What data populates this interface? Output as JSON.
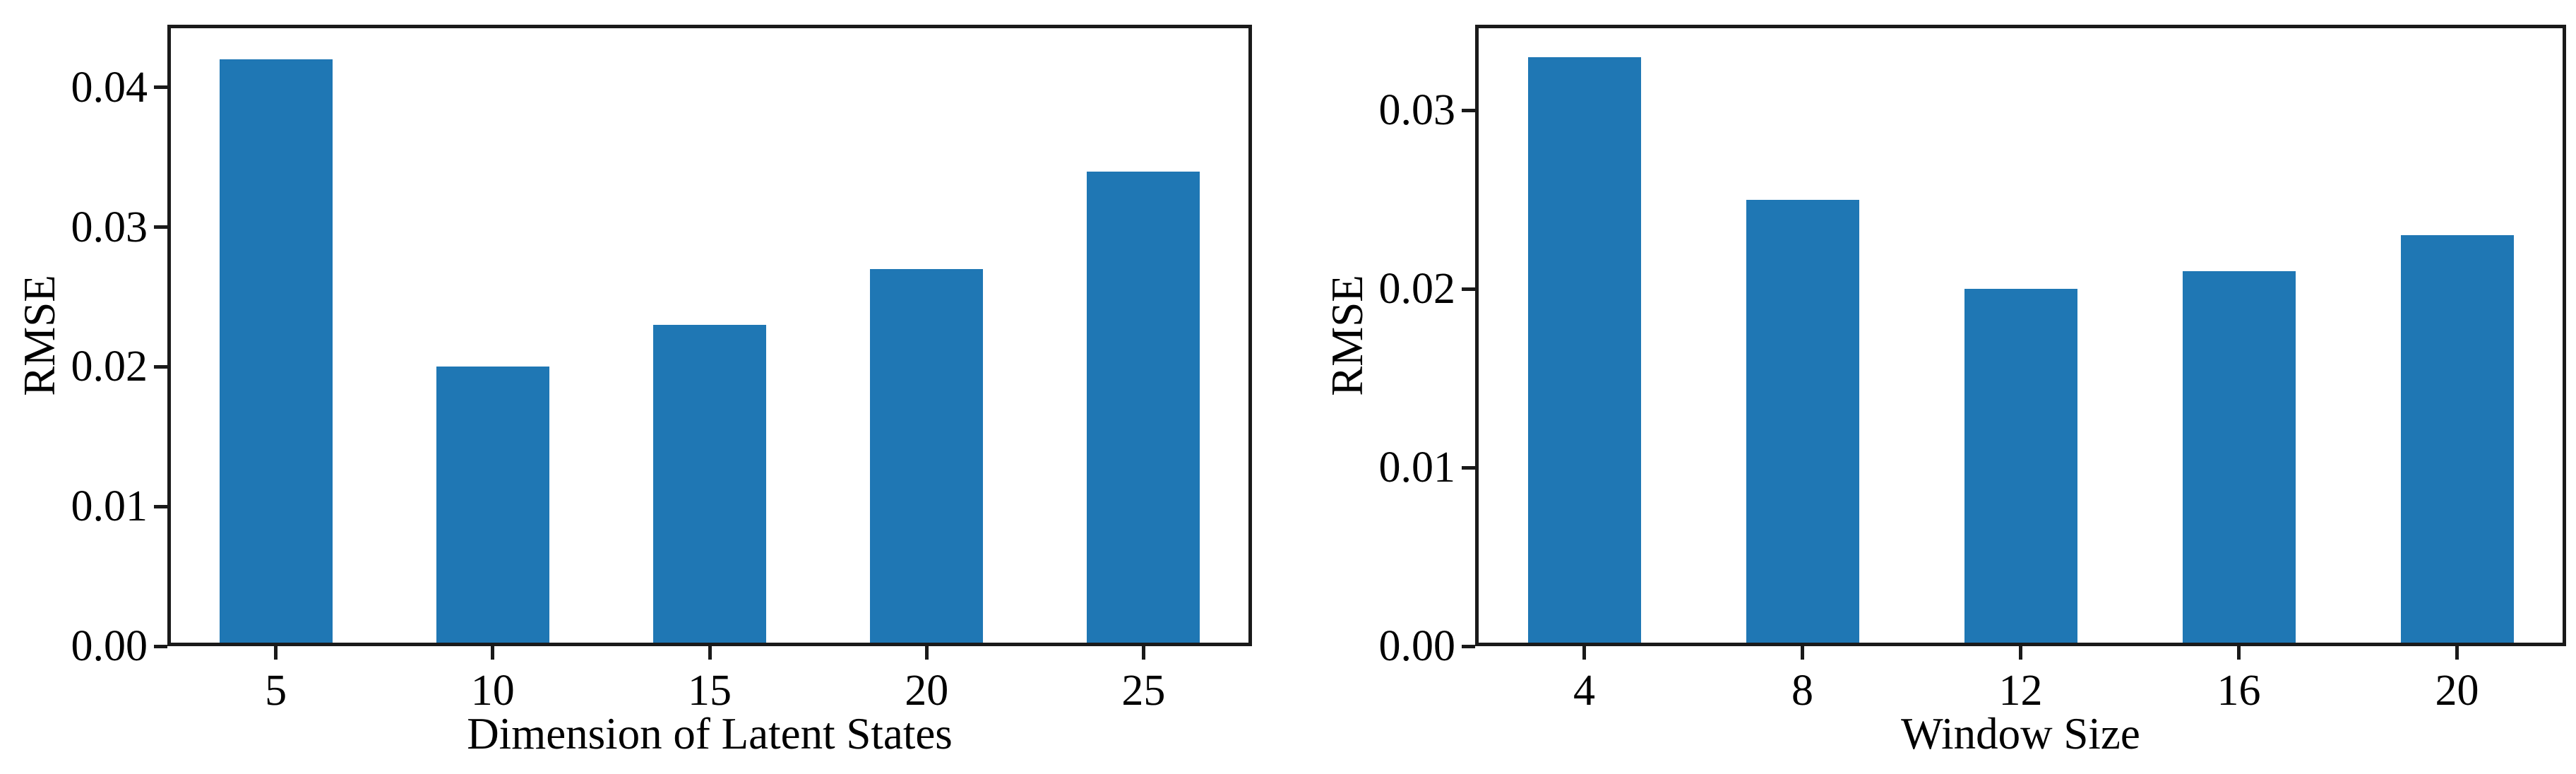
{
  "figure": {
    "background_color": "#ffffff",
    "bar_color": "#1f77b4",
    "axis_color": "#1a1a1a",
    "text_color": "#000000"
  },
  "chart_data": [
    {
      "type": "bar",
      "title": "",
      "xlabel": "Dimension of Latent States",
      "ylabel": "RMSE",
      "categories": [
        "5",
        "10",
        "15",
        "20",
        "25"
      ],
      "values": [
        0.042,
        0.02,
        0.023,
        0.027,
        0.034
      ],
      "ylim": [
        0,
        0.0445
      ],
      "yticks": [
        0,
        0.01,
        0.02,
        0.03,
        0.04
      ],
      "ytick_labels": [
        "0.00",
        "0.01",
        "0.02",
        "0.03",
        "0.04"
      ],
      "grid": false,
      "legend_position": "none"
    },
    {
      "type": "bar",
      "title": "",
      "xlabel": "Window Size",
      "ylabel": "RMSE",
      "categories": [
        "4",
        "8",
        "12",
        "16",
        "20"
      ],
      "values": [
        0.033,
        0.025,
        0.02,
        0.021,
        0.023
      ],
      "ylim": [
        0,
        0.0348
      ],
      "yticks": [
        0,
        0.01,
        0.02,
        0.03
      ],
      "ytick_labels": [
        "0.00",
        "0.01",
        "0.02",
        "0.03"
      ],
      "grid": false,
      "legend_position": "none"
    }
  ]
}
